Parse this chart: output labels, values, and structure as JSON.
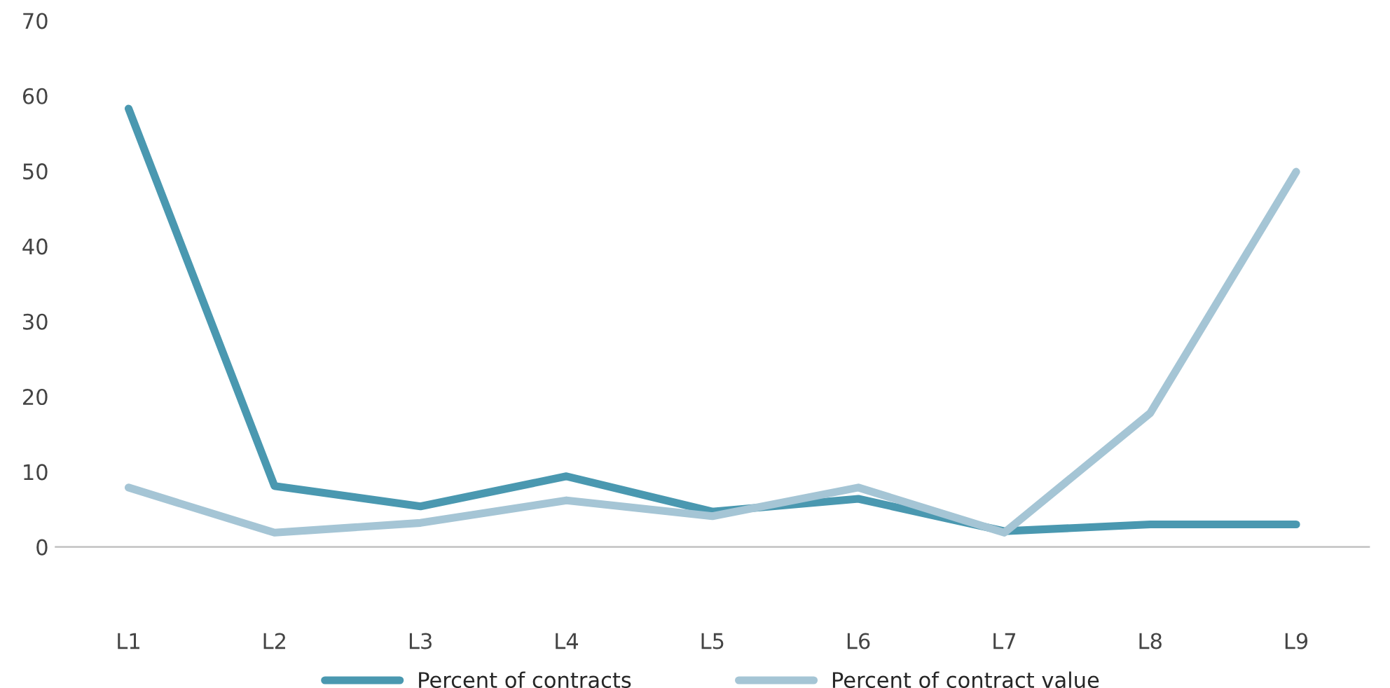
{
  "chart_data": {
    "type": "line",
    "categories": [
      "L1",
      "L2",
      "L3",
      "L4",
      "L5",
      "L6",
      "L7",
      "L8",
      "L9"
    ],
    "series": [
      {
        "name": "Percent of contracts",
        "color": "#4a98b0",
        "values": [
          58.3,
          8.1,
          5.4,
          9.4,
          4.7,
          6.4,
          2.1,
          3,
          3
        ]
      },
      {
        "name": "Percent of contract value",
        "color": "#a5c5d5",
        "values": [
          7.9,
          1.9,
          3.2,
          6.2,
          4.1,
          7.9,
          1.9,
          17.8,
          49.9
        ]
      }
    ],
    "ylim": [
      0,
      70
    ],
    "yticks": [
      0,
      10,
      20,
      30,
      40,
      50,
      60,
      70
    ],
    "grid": false,
    "legend": "bottom",
    "marker": "none",
    "line_style": "solid"
  }
}
